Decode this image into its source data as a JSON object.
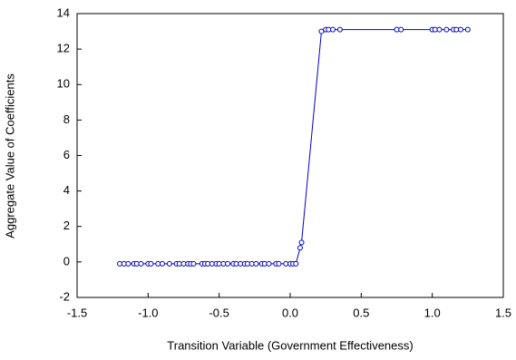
{
  "chart_data": {
    "type": "line",
    "x_label": "Transition Variable (Government Effectiveness)",
    "y_label": "Aggregate Value of Coefficients",
    "x": [
      -1.2,
      -1.17,
      -1.14,
      -1.1,
      -1.08,
      -1.05,
      -1.0,
      -0.98,
      -0.93,
      -0.9,
      -0.85,
      -0.8,
      -0.78,
      -0.75,
      -0.72,
      -0.7,
      -0.68,
      -0.62,
      -0.6,
      -0.58,
      -0.55,
      -0.52,
      -0.5,
      -0.47,
      -0.44,
      -0.4,
      -0.38,
      -0.35,
      -0.32,
      -0.3,
      -0.27,
      -0.24,
      -0.2,
      -0.18,
      -0.15,
      -0.1,
      -0.08,
      -0.03,
      0.0,
      0.02,
      0.04,
      0.07,
      0.08,
      0.22,
      0.25,
      0.27,
      0.3,
      0.35,
      0.75,
      0.78,
      1.0,
      1.02,
      1.05,
      1.1,
      1.15,
      1.17,
      1.2,
      1.25
    ],
    "series": [
      {
        "color": "#0000cc",
        "values": [
          -0.1,
          -0.1,
          -0.1,
          -0.1,
          -0.1,
          -0.1,
          -0.1,
          -0.1,
          -0.1,
          -0.1,
          -0.1,
          -0.1,
          -0.1,
          -0.1,
          -0.1,
          -0.1,
          -0.1,
          -0.1,
          -0.1,
          -0.1,
          -0.1,
          -0.1,
          -0.1,
          -0.1,
          -0.1,
          -0.1,
          -0.1,
          -0.1,
          -0.1,
          -0.1,
          -0.1,
          -0.1,
          -0.1,
          -0.1,
          -0.1,
          -0.1,
          -0.1,
          -0.1,
          -0.1,
          -0.1,
          -0.1,
          0.8,
          1.1,
          13.0,
          13.1,
          13.1,
          13.1,
          13.1,
          13.1,
          13.1,
          13.1,
          13.1,
          13.1,
          13.1,
          13.1,
          13.1,
          13.1,
          13.1
        ]
      }
    ],
    "xlim": [
      -1.5,
      1.5
    ],
    "xticks": [
      -1.5,
      {
        "value": -1.0,
        "label": "-1.0"
      },
      -0.5,
      {
        "value": 0,
        "label": "0.0"
      },
      0.5,
      {
        "value": 1,
        "label": "1.0"
      },
      1.5
    ],
    "ylim": [
      -2,
      14
    ],
    "yticks": [
      -2,
      0,
      2,
      4,
      6,
      8,
      10,
      12,
      14
    ]
  }
}
